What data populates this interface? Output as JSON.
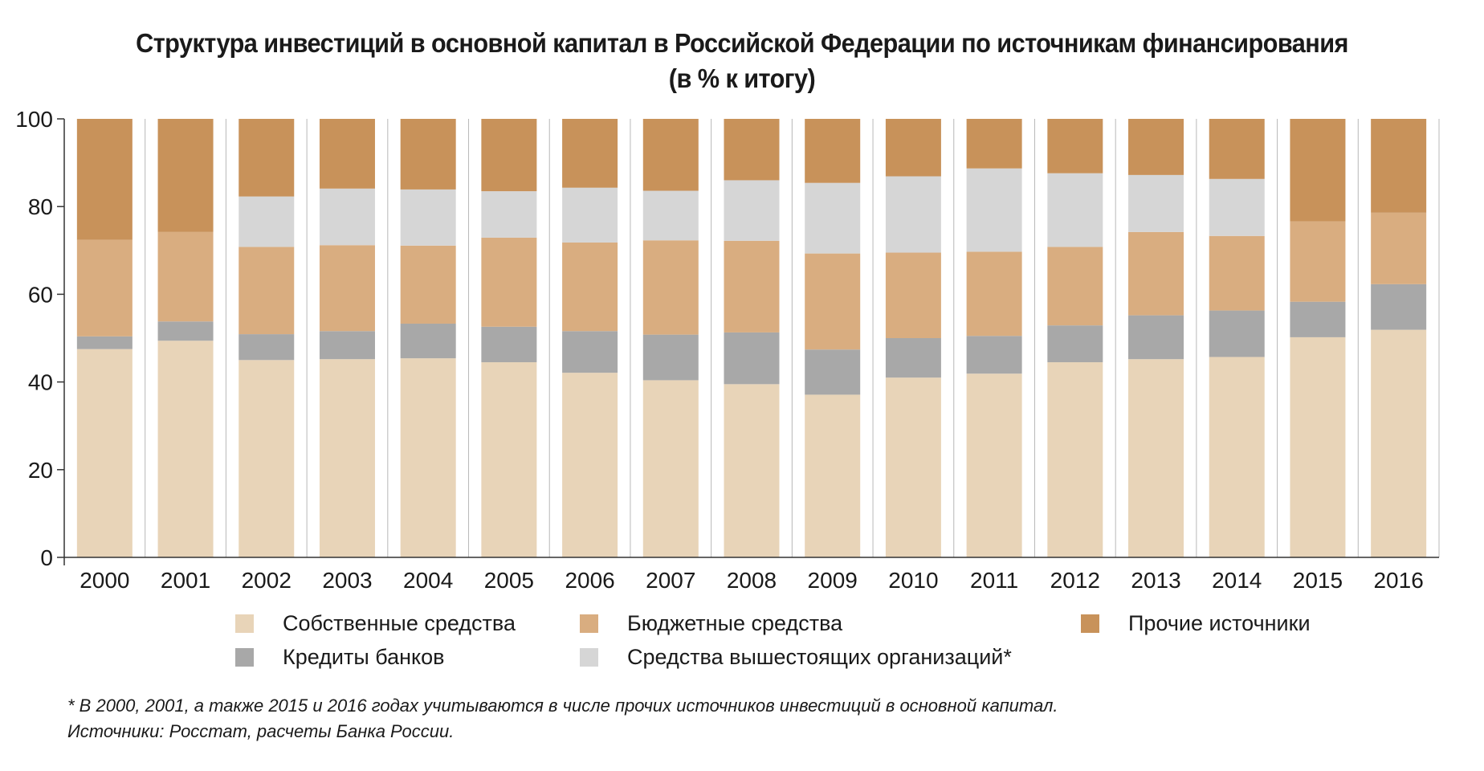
{
  "chart_data": {
    "type": "bar",
    "stacked": true,
    "title_line1": "Структура инвестиций в основной капитал в Российской Федерации по источникам финансирования",
    "title_line2": "(в % к итогу)",
    "categories": [
      "2000",
      "2001",
      "2002",
      "2003",
      "2004",
      "2005",
      "2006",
      "2007",
      "2008",
      "2009",
      "2010",
      "2011",
      "2012",
      "2013",
      "2014",
      "2015",
      "2016"
    ],
    "ylim": [
      0,
      100
    ],
    "yticks": [
      "0",
      "20",
      "40",
      "60",
      "80",
      "100"
    ],
    "grid": true,
    "series": [
      {
        "name": "Собственные средства",
        "color": "#e8d4b8",
        "values": [
          47.5,
          49.4,
          45.0,
          45.2,
          45.4,
          44.5,
          42.1,
          40.4,
          39.5,
          37.1,
          41.0,
          41.9,
          44.5,
          45.2,
          45.7,
          50.2,
          51.9
        ]
      },
      {
        "name": "Кредиты банков",
        "color": "#a8a8a8",
        "values": [
          2.9,
          4.4,
          5.9,
          6.4,
          7.9,
          8.1,
          9.5,
          10.4,
          11.8,
          10.3,
          9.0,
          8.6,
          8.4,
          10.0,
          10.6,
          8.1,
          10.4
        ]
      },
      {
        "name": "Бюджетные средства",
        "color": "#d9ad80",
        "values": [
          22.0,
          20.4,
          19.9,
          19.6,
          17.8,
          20.3,
          20.2,
          21.5,
          20.9,
          21.9,
          19.5,
          19.2,
          17.9,
          19.0,
          17.0,
          18.3,
          16.3
        ]
      },
      {
        "name": "Средства вышестоящих организаций*",
        "color": "#d6d6d6",
        "values": [
          0,
          0,
          11.5,
          12.9,
          12.8,
          10.6,
          12.5,
          11.3,
          13.8,
          16.1,
          17.4,
          19.0,
          16.8,
          13.0,
          13.0,
          0,
          0
        ]
      },
      {
        "name": "Прочие источники",
        "color": "#c8925a",
        "values": [
          27.6,
          25.8,
          17.7,
          15.9,
          16.1,
          16.5,
          15.7,
          16.4,
          14.0,
          14.6,
          13.1,
          11.3,
          12.4,
          12.8,
          13.7,
          23.4,
          21.4
        ]
      }
    ]
  },
  "legend": {
    "own_funds": "Собственные средства",
    "budget_funds": "Бюджетные средства",
    "other_sources": "Прочие источники",
    "bank_credits": "Кредиты банков",
    "parent_org_funds": "Средства вышестоящих организаций*"
  },
  "colors": {
    "own_funds": "#e8d4b8",
    "budget_funds": "#d9ad80",
    "other_sources": "#c8925a",
    "bank_credits": "#a8a8a8",
    "parent_org_funds": "#d6d6d6"
  },
  "footnote": "* В 2000, 2001, а также 2015 и 2016 годах учитываются в числе прочих источников инвестиций в основной капитал.",
  "sources": "Источники: Росстат, расчеты Банка России."
}
